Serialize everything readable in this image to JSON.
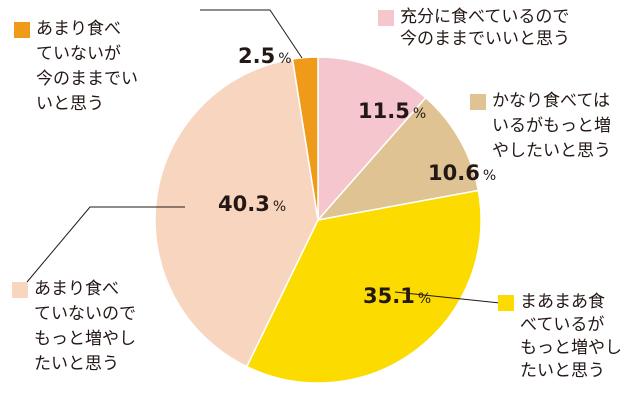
{
  "chart_data": {
    "type": "pie",
    "title": "",
    "unit": "%",
    "slices": [
      {
        "label_lines": [
          "充分に食べているので",
          "今のままでいいと思う"
        ],
        "value": 11.5,
        "color": "#F6C6CF"
      },
      {
        "label_lines": [
          "かなり食べては",
          "いるがもっと増",
          "やしたいと思う"
        ],
        "value": 10.6,
        "color": "#DFC393"
      },
      {
        "label_lines": [
          "まあまあ食",
          "べているが",
          "もっと増やし",
          "たいと思う"
        ],
        "value": 35.1,
        "color": "#FBDB00"
      },
      {
        "label_lines": [
          "あまり食べ",
          "ていないので",
          "もっと増やし",
          "たいと思う"
        ],
        "value": 40.3,
        "color": "#F8D5BE"
      },
      {
        "label_lines": [
          "あまり食べ",
          "ていないが",
          "今のままでい",
          "いと思う"
        ],
        "value": 2.5,
        "color": "#F09A1A"
      }
    ]
  }
}
